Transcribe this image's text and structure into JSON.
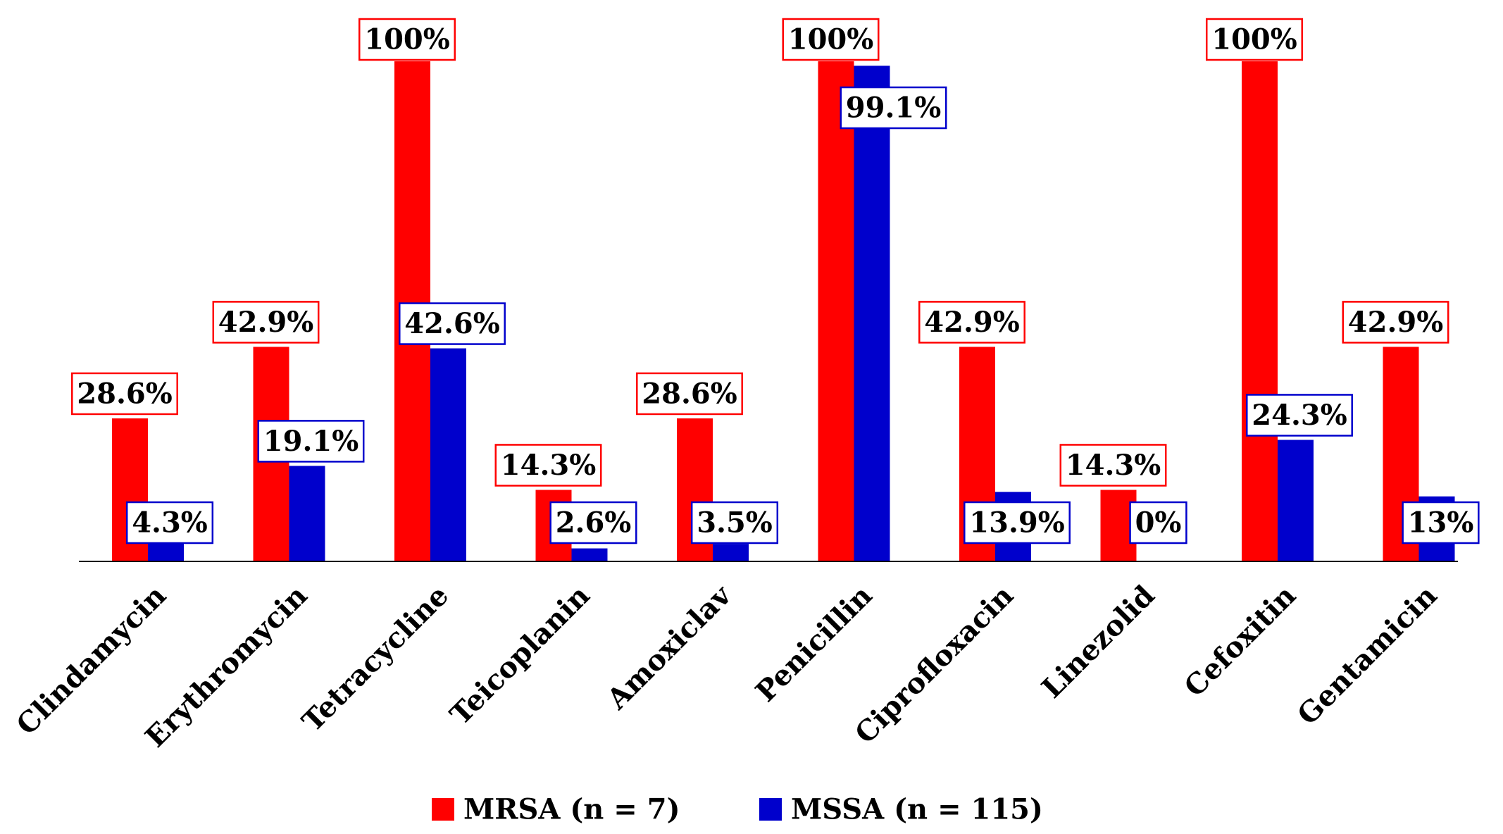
{
  "chart_data": {
    "type": "bar",
    "title": "",
    "xlabel": "",
    "ylabel": "",
    "ylim": [
      0,
      100
    ],
    "grid": false,
    "legend_position": "bottom-center",
    "categories": [
      "Clindamycin",
      "Erythromycin",
      "Tetracycline",
      "Teicoplanin",
      "Amoxiclav",
      "Penicillin",
      "Ciprofloxacin",
      "Linezolid",
      "Cefoxitin",
      "Gentamicin"
    ],
    "series": [
      {
        "name": "MRSA (n = 7)",
        "color": "#ff0000",
        "values": [
          28.6,
          42.9,
          100,
          14.3,
          28.6,
          100,
          42.9,
          14.3,
          100,
          42.9
        ],
        "labels": [
          "28.6%",
          "42.9%",
          "100%",
          "14.3%",
          "28.6%",
          "100%",
          "42.9%",
          "14.3%",
          "100%",
          "42.9%"
        ]
      },
      {
        "name": "MSSA (n = 115)",
        "color": "#0000cc",
        "values": [
          4.3,
          19.1,
          42.6,
          2.6,
          3.5,
          99.1,
          13.9,
          0,
          24.3,
          13
        ],
        "labels": [
          "4.3%",
          "19.1%",
          "42.6%",
          "2.6%",
          "3.5%",
          "99.1%",
          "13.9%",
          "0%",
          "24.3%",
          "13%"
        ]
      }
    ]
  }
}
